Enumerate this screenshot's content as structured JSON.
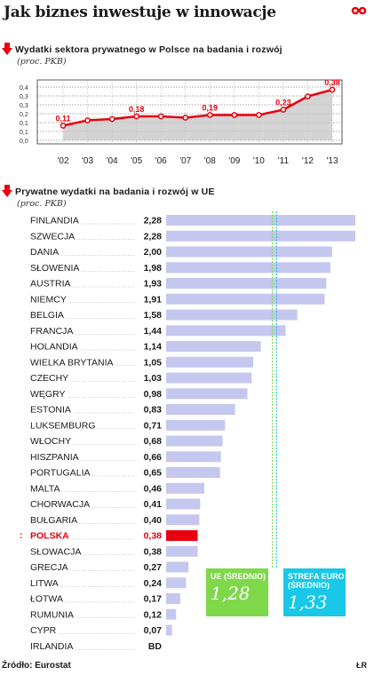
{
  "title": "Jak biznes inwestuje w innowacje",
  "colors": {
    "accent_red": "#e8000f",
    "bar_blue": "#c5c7ef",
    "eu_green": "#7fd84a",
    "euro_cyan": "#19c7e6",
    "line_red": "#e8000f"
  },
  "chart_data": [
    {
      "type": "line",
      "title": "Wydatki sektora prywatnego w Polsce na badania i rozwój",
      "subtitle": "(proc. PKB)",
      "x": [
        "'02",
        "'03",
        "'04",
        "'05",
        "'06",
        "'07",
        "'08",
        "'09",
        "'10",
        "'11",
        "'12",
        "'13"
      ],
      "values": [
        0.11,
        0.15,
        0.16,
        0.18,
        0.18,
        0.17,
        0.19,
        0.19,
        0.19,
        0.23,
        0.33,
        0.38
      ],
      "point_labels": [
        "0,11",
        "",
        "",
        "0,18",
        "",
        "",
        "0,19",
        "",
        "",
        "0,23",
        "",
        "0,38"
      ],
      "yticks": [
        "0,0",
        "0,1",
        "0,1",
        "0,2",
        "0,3",
        "0,3",
        "0,4"
      ],
      "ylim": [
        0,
        0.4
      ],
      "grid": true
    },
    {
      "type": "bar",
      "title": "Prywatne wydatki na badania i rozwój w UE",
      "subtitle": "(proc. PKB)",
      "categories": [
        "FINLANDIA",
        "SZWECJA",
        "DANIA",
        "SŁOWENIA",
        "AUSTRIA",
        "NIEMCY",
        "BELGIA",
        "FRANCJA",
        "HOLANDIA",
        "WIELKA BRYTANIA",
        "CZECHY",
        "WĘGRY",
        "ESTONIA",
        "LUKSEMBURG",
        "WŁOCHY",
        "HISZPANIA",
        "PORTUGALIA",
        "MALTA",
        "CHORWACJA",
        "BUŁGARIA",
        "POLSKA",
        "SŁOWACJA",
        "GRECJA",
        "LITWA",
        "ŁOTWA",
        "RUMUNIA",
        "CYPR",
        "IRLANDIA"
      ],
      "values": [
        2.28,
        2.28,
        2.0,
        1.98,
        1.93,
        1.91,
        1.58,
        1.44,
        1.14,
        1.05,
        1.03,
        0.98,
        0.83,
        0.71,
        0.68,
        0.66,
        0.65,
        0.46,
        0.41,
        0.4,
        0.38,
        0.38,
        0.27,
        0.24,
        0.17,
        0.12,
        0.07,
        null
      ],
      "value_labels": [
        "2,28",
        "2,28",
        "2,00",
        "1,98",
        "1,93",
        "1,91",
        "1,58",
        "1,44",
        "1,14",
        "1,05",
        "1,03",
        "0,98",
        "0,83",
        "0,71",
        "0,68",
        "0,66",
        "0,65",
        "0,46",
        "0,41",
        "0,40",
        "0,38",
        "0,38",
        "0,27",
        "0,24",
        "0,17",
        "0,12",
        "0,07",
        "BD"
      ],
      "highlight": "POLSKA",
      "reference_lines": [
        {
          "label": "UE (ŚREDNIO)",
          "value": 1.28,
          "value_label": "1,28"
        },
        {
          "label": "STREFA EURO (ŚREDNIO)",
          "value": 1.33,
          "value_label": "1,33"
        }
      ]
    }
  ],
  "footer": "Źródło: Eurostat",
  "credit": "ŁR"
}
